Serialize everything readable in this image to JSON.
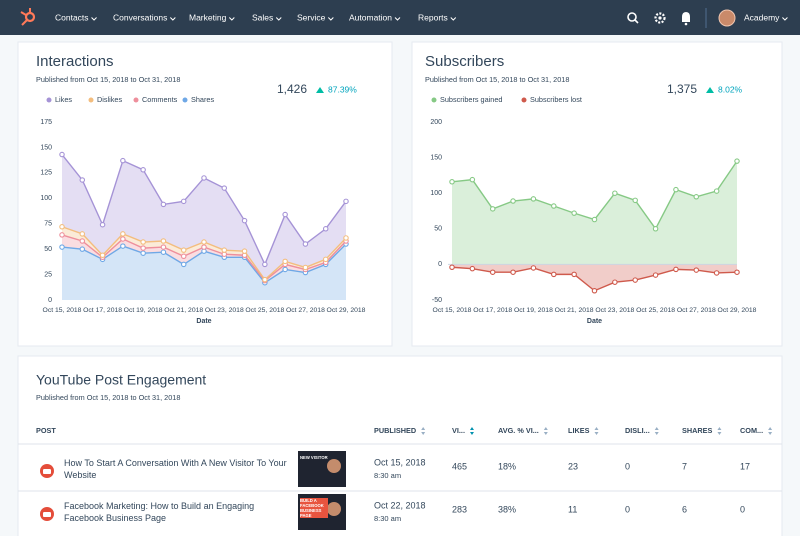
{
  "nav": {
    "items": [
      "Contacts",
      "Conversations",
      "Marketing",
      "Sales",
      "Service",
      "Automation",
      "Reports"
    ],
    "account": "Academy"
  },
  "chart_data": [
    {
      "type": "area",
      "stacked": true,
      "title": "Interactions",
      "subtitle": "Published from Oct 15, 2018 to Oct 31, 2018",
      "summary": "1,426",
      "change": "87.39%",
      "x_label": "Date",
      "categories": [
        "Oct 15, 2018",
        null,
        "Oct 17, 2018",
        null,
        "Oct 19, 2018",
        null,
        "Oct 21, 2018",
        null,
        "Oct 23, 2018",
        null,
        "Oct 25, 2018",
        null,
        "Oct 27, 2018",
        null,
        "Oct 29, 2018"
      ],
      "series": [
        {
          "name": "Likes",
          "color": "#a593d6",
          "values": [
            71,
            53,
            30,
            72,
            71,
            36,
            48,
            63,
            61,
            30,
            15,
            46,
            23,
            30,
            36
          ]
        },
        {
          "name": "Dislikes",
          "color": "#f3bd7e",
          "values": [
            8,
            7,
            2,
            5,
            6,
            6,
            6,
            5,
            4,
            4,
            1,
            3,
            2,
            3,
            3
          ]
        },
        {
          "name": "Comments",
          "color": "#ee8f9c",
          "values": [
            12,
            8,
            2,
            7,
            5,
            5,
            8,
            4,
            3,
            2,
            2,
            5,
            3,
            2,
            3
          ]
        },
        {
          "name": "Shares",
          "color": "#6fa8e6",
          "values": [
            52,
            50,
            40,
            53,
            46,
            47,
            35,
            48,
            42,
            42,
            17,
            30,
            27,
            35,
            55
          ]
        }
      ],
      "ylim": [
        0,
        175
      ],
      "yticks": [
        0,
        25,
        50,
        75,
        100,
        125,
        150,
        175
      ],
      "grid": false
    },
    {
      "type": "area",
      "stacked": false,
      "title": "Subscribers",
      "subtitle": "Published from Oct 15, 2018 to Oct 31, 2018",
      "summary": "1,375",
      "change": "8.02%",
      "x_label": "Date",
      "categories": [
        "Oct 15, 2018",
        null,
        "Oct 17, 2018",
        null,
        "Oct 19, 2018",
        null,
        "Oct 21, 2018",
        null,
        "Oct 23, 2018",
        null,
        "Oct 25, 2018",
        null,
        "Oct 27, 2018",
        null,
        "Oct 29, 2018"
      ],
      "series": [
        {
          "name": "Subscribers gained",
          "color": "#86c985",
          "values": [
            116,
            119,
            78,
            89,
            92,
            82,
            72,
            63,
            100,
            90,
            50,
            105,
            95,
            103,
            145
          ]
        },
        {
          "name": "Subscribers lost",
          "color": "#cf5a4c",
          "values": [
            -4,
            -6,
            -11,
            -11,
            -5,
            -14,
            -14,
            -37,
            -25,
            -22,
            -15,
            -7,
            -8,
            -12,
            -11
          ]
        }
      ],
      "ylim": [
        -50,
        200
      ],
      "yticks": [
        -50,
        0,
        50,
        100,
        150,
        200
      ],
      "grid": false
    }
  ],
  "table": {
    "title": "YouTube Post Engagement",
    "subtitle": "Published from Oct 15, 2018 to Oct 31, 2018",
    "columns": [
      "POST",
      "PUBLISHED",
      "VI...",
      "AVG. % VI...",
      "LIKES",
      "DISLI...",
      "SHARES",
      "COM..."
    ],
    "rows": [
      {
        "post": "How To Start A Conversation With A New Visitor To Your Website",
        "thumbnail_text": "NEW VISITOR",
        "published": "Oct 15, 2018",
        "time": "8:30 am",
        "cells": [
          465,
          "18%",
          23,
          0,
          7,
          17
        ]
      },
      {
        "post": "Facebook Marketing: How to Build an Engaging Facebook Business Page",
        "thumbnail_text": "BUILD A FACEBOOK BUSINESS PAGE",
        "published": "Oct 22, 2018",
        "time": "8:30 am",
        "cells": [
          283,
          "38%",
          11,
          0,
          6,
          0
        ]
      }
    ]
  }
}
